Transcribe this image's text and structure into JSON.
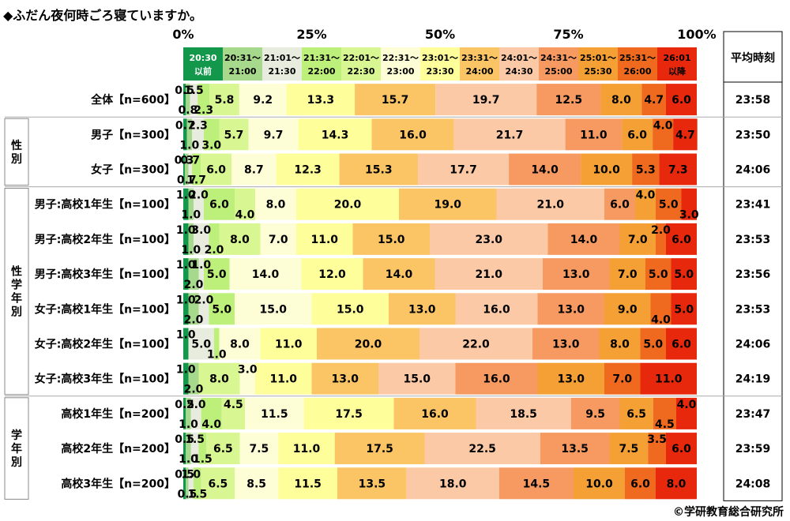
{
  "title": "◆ふだん夜何時ごろ寝ていますか。",
  "copyright": "©学研教育総合研究所",
  "average_header": "平均時刻",
  "chart_data": {
    "type": "stacked-bar-horizontal-100",
    "title": "◆ふだん夜何時ごろ寝ていますか。",
    "axis_ticks": [
      "0%",
      "25%",
      "50%",
      "75%",
      "100%"
    ],
    "xlim": [
      0,
      100
    ],
    "categories": [
      {
        "label": "20:30",
        "label2": "以前",
        "color": "#13974a",
        "text": "#ffffff"
      },
      {
        "label": "20:31～",
        "label2": "21:00",
        "color": "#a7d98c",
        "text": "#000000"
      },
      {
        "label": "21:01～",
        "label2": "21:30",
        "color": "#e8ecdf",
        "text": "#000000"
      },
      {
        "label": "21:31～",
        "label2": "22:00",
        "color": "#bcf07a",
        "text": "#000000"
      },
      {
        "label": "22:01～",
        "label2": "22:30",
        "color": "#d8f692",
        "text": "#000000"
      },
      {
        "label": "22:31～",
        "label2": "23:00",
        "color": "#fefed6",
        "text": "#000000"
      },
      {
        "label": "23:01～",
        "label2": "23:30",
        "color": "#fefe9a",
        "text": "#000000"
      },
      {
        "label": "23:31～",
        "label2": "24:00",
        "color": "#fbc565",
        "text": "#000000"
      },
      {
        "label": "24:01～",
        "label2": "24:30",
        "color": "#fcc9a6",
        "text": "#000000"
      },
      {
        "label": "24:31～",
        "label2": "25:00",
        "color": "#f69a62",
        "text": "#000000"
      },
      {
        "label": "25:01～",
        "label2": "25:30",
        "color": "#f4a034",
        "text": "#000000"
      },
      {
        "label": "25:31～",
        "label2": "26:00",
        "color": "#ef6a1e",
        "text": "#000000"
      },
      {
        "label": "26:01",
        "label2": "以降",
        "color": "#e8280c",
        "text": "#000000"
      }
    ],
    "groups": [
      {
        "label": "性別",
        "rows": [
          1,
          2
        ]
      },
      {
        "label": "性学年別",
        "rows": [
          3,
          8
        ]
      },
      {
        "label": "学年別",
        "rows": [
          9,
          11
        ]
      }
    ],
    "rows": [
      {
        "label": "全体【n=600】",
        "values": [
          0.5,
          0.8,
          1.5,
          2.3,
          5.8,
          9.2,
          13.3,
          15.7,
          19.7,
          12.5,
          8.0,
          4.7,
          6.0
        ],
        "average": "23:58"
      },
      {
        "label": "男子【n=300】",
        "values": [
          0.7,
          1.0,
          2.3,
          3.0,
          5.7,
          9.7,
          14.3,
          16.0,
          21.7,
          11.0,
          6.0,
          4.0,
          4.7
        ],
        "average": "23:50"
      },
      {
        "label": "女子【n=300】",
        "values": [
          0.3,
          0.7,
          0.7,
          1.7,
          6.0,
          8.7,
          12.3,
          15.3,
          17.7,
          14.0,
          10.0,
          5.3,
          7.3
        ],
        "average": "24:06"
      },
      {
        "label": "男子:高校1年生【n=100】",
        "values": [
          1.0,
          1.0,
          2.0,
          6.0,
          4.0,
          8.0,
          20.0,
          19.0,
          21.0,
          6.0,
          4.0,
          5.0,
          3.0
        ],
        "average": "23:41"
      },
      {
        "label": "男子:高校2年生【n=100】",
        "values": [
          1.0,
          1.0,
          3.0,
          2.0,
          8.0,
          7.0,
          11.0,
          15.0,
          23.0,
          14.0,
          7.0,
          2.0,
          6.0
        ],
        "average": "23:53"
      },
      {
        "label": "男子:高校3年生【n=100】",
        "values": [
          1.0,
          2.0,
          1.0,
          5.0,
          0.0,
          14.0,
          12.0,
          14.0,
          21.0,
          13.0,
          7.0,
          5.0,
          5.0
        ],
        "average": "23:56"
      },
      {
        "label": "女子:高校1年生【n=100】",
        "values": [
          1.0,
          2.0,
          2.0,
          5.0,
          0.0,
          15.0,
          15.0,
          13.0,
          16.0,
          13.0,
          9.0,
          4.0,
          5.0
        ],
        "average": "23:53"
      },
      {
        "label": "女子:高校2年生【n=100】",
        "values": [
          1.0,
          0.0,
          5.0,
          1.0,
          0.0,
          8.0,
          11.0,
          20.0,
          22.0,
          13.0,
          8.0,
          5.0,
          6.0
        ],
        "average": "24:06"
      },
      {
        "label": "女子:高校3年生【n=100】",
        "values": [
          1.0,
          2.0,
          0.0,
          0.0,
          8.0,
          3.0,
          11.0,
          13.0,
          15.0,
          16.0,
          13.0,
          7.0,
          11.0
        ],
        "average": "24:19"
      },
      {
        "label": "高校1年生【n=200】",
        "values": [
          0.5,
          1.0,
          2.0,
          4.0,
          4.5,
          11.5,
          17.5,
          16.0,
          18.5,
          9.5,
          6.5,
          4.5,
          4.0
        ],
        "average": "23:47"
      },
      {
        "label": "高校2年生【n=200】",
        "values": [
          0.5,
          1.0,
          1.5,
          1.5,
          6.5,
          7.5,
          11.0,
          17.5,
          22.5,
          13.5,
          7.5,
          3.5,
          6.0
        ],
        "average": "23:59"
      },
      {
        "label": "高校3年生【n=200】",
        "values": [
          0.5,
          0.5,
          1.0,
          1.5,
          6.5,
          8.5,
          11.5,
          13.5,
          18.0,
          14.5,
          10.0,
          6.0,
          8.0
        ],
        "average": "24:08"
      }
    ]
  }
}
